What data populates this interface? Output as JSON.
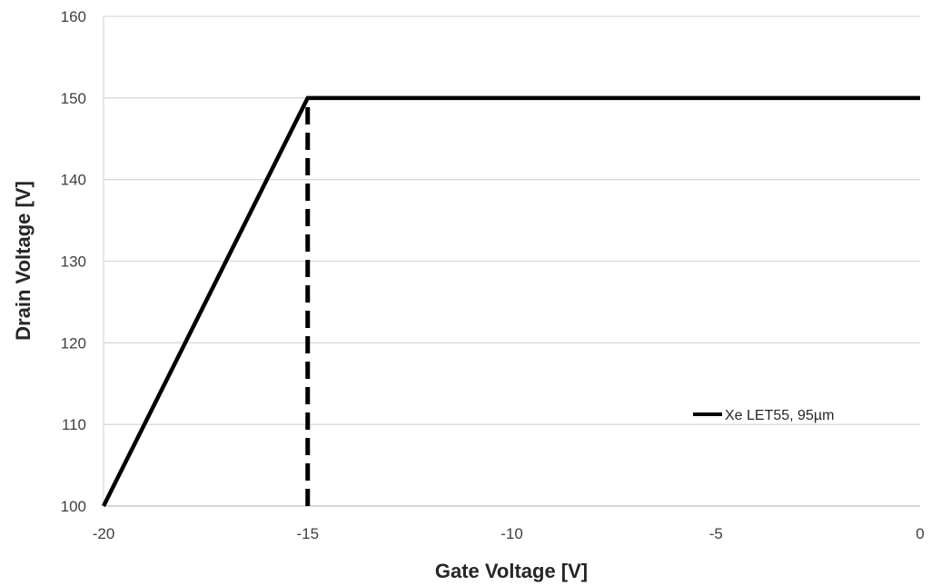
{
  "chart_data": {
    "type": "line",
    "title": "",
    "xlabel": "Gate Voltage [V]",
    "ylabel": "Drain Voltage [V]",
    "xlim": [
      -20,
      0
    ],
    "ylim": [
      100,
      160
    ],
    "x_ticks": [
      -20,
      -15,
      -10,
      -5,
      0
    ],
    "y_ticks": [
      100,
      110,
      120,
      130,
      140,
      150,
      160
    ],
    "x_tick_labels": [
      "-20",
      "-15",
      "-10",
      "-5",
      "0"
    ],
    "y_tick_labels": [
      "100",
      "110",
      "120",
      "130",
      "140",
      "150",
      "160"
    ],
    "grid": "horizontal",
    "legend_position": "right",
    "series": [
      {
        "name": "Xe LET55, 95µm",
        "color": "#000000",
        "x": [
          -20,
          -15,
          0
        ],
        "y": [
          100,
          150,
          150
        ]
      }
    ],
    "annotations": [
      {
        "type": "vertical-dashed-line",
        "x": -15,
        "y_from": 100,
        "y_to": 150,
        "color": "#000000"
      }
    ]
  }
}
